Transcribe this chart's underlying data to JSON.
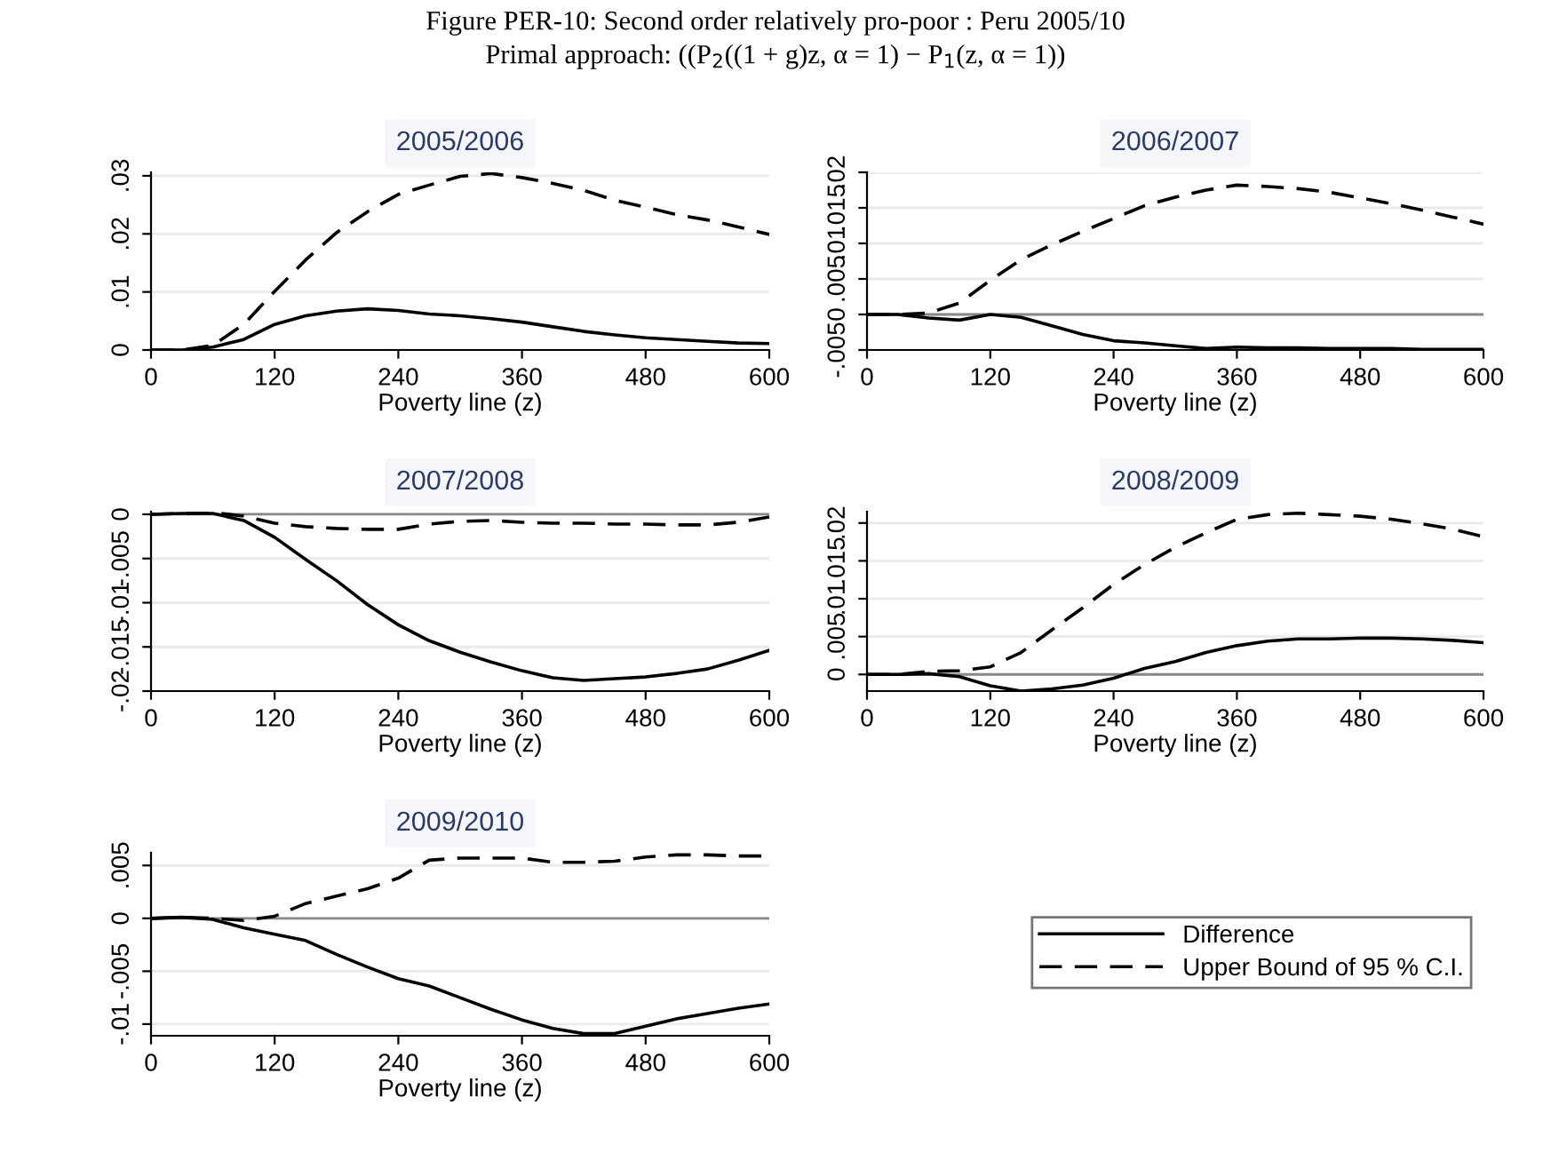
{
  "chart_data": [
    {
      "type": "line",
      "title": "2005/2006",
      "xlabel": "Poverty line (z)",
      "annotations": [
        "Figure PER-10: Second order relatively pro-poor : Peru 2005/10",
        "Primal approach: ((P$_{2}$((1 + g)z, α = 1) − P$_{1}$(z, α = 1))"
      ],
      "x": [
        0,
        30,
        60,
        90,
        120,
        150,
        180,
        210,
        240,
        270,
        300,
        330,
        360,
        390,
        420,
        450,
        480,
        510,
        540,
        570,
        600
      ],
      "xlim": [
        0,
        600
      ],
      "xticks": [
        0,
        120,
        240,
        360,
        480,
        600
      ],
      "ylim": [
        0,
        0.0306
      ],
      "yticks": [
        {
          "value": 0,
          "label": "0"
        },
        {
          "value": 0.01,
          "label": ".01"
        },
        {
          "value": 0.02,
          "label": ".02"
        },
        {
          "value": 0.03,
          "label": ".03"
        }
      ],
      "grid": "y",
      "legend": "bottom right",
      "series": [
        {
          "name": "Difference",
          "color": "#000000",
          "line_style": "solid",
          "values": [
            0,
            0,
            0.0005,
            0.0018,
            0.0044,
            0.0059,
            0.0067,
            0.0071,
            0.0068,
            0.0062,
            0.0059,
            0.0054,
            0.0048,
            0.004,
            0.0032,
            0.0026,
            0.0021,
            0.0018,
            0.0015,
            0.0012,
            0.0011
          ]
        },
        {
          "name": "Upper Bound of 95 % C.I.",
          "color": "#000000",
          "line_style": "dashed",
          "values": [
            0,
            0,
            0.0008,
            0.0044,
            0.0101,
            0.0155,
            0.0202,
            0.0238,
            0.0268,
            0.0284,
            0.0299,
            0.0304,
            0.0297,
            0.0287,
            0.0275,
            0.0258,
            0.0246,
            0.0233,
            0.0224,
            0.0212,
            0.0199
          ]
        }
      ]
    },
    {
      "type": "line",
      "title": "2006/2007",
      "xlabel": "Poverty line (z)",
      "x": [
        0,
        30,
        60,
        90,
        120,
        150,
        180,
        210,
        240,
        270,
        300,
        330,
        360,
        390,
        420,
        450,
        480,
        510,
        540,
        570,
        600
      ],
      "xlim": [
        0,
        600
      ],
      "xticks": [
        0,
        120,
        240,
        360,
        480,
        600
      ],
      "ylim": [
        -0.005,
        0.02
      ],
      "yticks": [
        {
          "value": -0.005,
          "label": "-.005"
        },
        {
          "value": 0,
          "label": "0"
        },
        {
          "value": 0.005,
          "label": ".005"
        },
        {
          "value": 0.01,
          "label": ".01"
        },
        {
          "value": 0.015,
          "label": ".015"
        },
        {
          "value": 0.02,
          "label": ".02"
        }
      ],
      "grid": "y",
      "ref_lines": [
        {
          "axis": "y",
          "value": 0,
          "color": "#888888"
        }
      ],
      "series": [
        {
          "color": "#000000",
          "line_style": "solid",
          "values": [
            0,
            0,
            -0.0005,
            -0.0008,
            0,
            -0.0004,
            -0.0016,
            -0.0028,
            -0.0037,
            -0.004,
            -0.0044,
            -0.0048,
            -0.0046,
            -0.0047,
            -0.0047,
            -0.0048,
            -0.0048,
            -0.0048,
            -0.0049,
            -0.0049,
            -0.0049
          ]
        },
        {
          "color": "#000000",
          "line_style": "dashed",
          "values": [
            0,
            0,
            0.0002,
            0.0016,
            0.0048,
            0.0077,
            0.0098,
            0.0117,
            0.0135,
            0.0153,
            0.0165,
            0.0175,
            0.0182,
            0.018,
            0.0177,
            0.0172,
            0.0164,
            0.0156,
            0.0147,
            0.0137,
            0.0127
          ]
        }
      ]
    },
    {
      "type": "line",
      "title": "2007/2008",
      "xlabel": "Poverty line (z)",
      "x": [
        0,
        30,
        60,
        90,
        120,
        150,
        180,
        210,
        240,
        270,
        300,
        330,
        360,
        390,
        420,
        450,
        480,
        510,
        540,
        570,
        600
      ],
      "xlim": [
        0,
        600
      ],
      "xticks": [
        0,
        120,
        240,
        360,
        480,
        600
      ],
      "ylim": [
        -0.02,
        0.0003
      ],
      "yticks": [
        {
          "value": -0.02,
          "label": "-.02"
        },
        {
          "value": -0.015,
          "label": "-.015"
        },
        {
          "value": -0.01,
          "label": "-.01"
        },
        {
          "value": -0.005,
          "label": "-.005"
        },
        {
          "value": 0,
          "label": "0"
        }
      ],
      "grid": "y",
      "ref_lines": [
        {
          "axis": "y",
          "value": 0,
          "color": "#888888"
        }
      ],
      "series": [
        {
          "color": "#000000",
          "line_style": "solid",
          "values": [
            0,
            0.0001,
            0.0001,
            -0.0007,
            -0.0026,
            -0.0051,
            -0.0075,
            -0.0102,
            -0.0125,
            -0.0143,
            -0.0156,
            -0.0167,
            -0.0177,
            -0.0185,
            -0.0188,
            -0.0186,
            -0.0184,
            -0.018,
            -0.0175,
            -0.0165,
            -0.0154
          ]
        },
        {
          "color": "#000000",
          "line_style": "dashed",
          "values": [
            0,
            0.0001,
            0.0002,
            -0.0002,
            -0.001,
            -0.0014,
            -0.0016,
            -0.0017,
            -0.0017,
            -0.0011,
            -0.0008,
            -0.0007,
            -0.0009,
            -0.001,
            -0.001,
            -0.0011,
            -0.0011,
            -0.0012,
            -0.0012,
            -0.0009,
            -0.0003
          ]
        }
      ]
    },
    {
      "type": "line",
      "title": "2008/2009",
      "xlabel": "Poverty line (z)",
      "x": [
        0,
        30,
        60,
        90,
        120,
        150,
        180,
        210,
        240,
        270,
        300,
        330,
        360,
        390,
        420,
        450,
        480,
        510,
        540,
        570,
        600
      ],
      "xlim": [
        0,
        600
      ],
      "xticks": [
        0,
        120,
        240,
        360,
        480,
        600
      ],
      "ylim": [
        -0.0022,
        0.0215
      ],
      "yticks": [
        {
          "value": 0,
          "label": "0"
        },
        {
          "value": 0.005,
          "label": ".005"
        },
        {
          "value": 0.01,
          "label": ".01"
        },
        {
          "value": 0.015,
          "label": ".015"
        },
        {
          "value": 0.02,
          "label": ".02"
        }
      ],
      "grid": "y",
      "ref_lines": [
        {
          "axis": "y",
          "value": 0,
          "color": "#888888"
        }
      ],
      "series": [
        {
          "color": "#000000",
          "line_style": "solid",
          "values": [
            0,
            0,
            0.0001,
            -0.0003,
            -0.0015,
            -0.0022,
            -0.0019,
            -0.0014,
            -0.0005,
            0.0008,
            0.0017,
            0.0029,
            0.0038,
            0.0044,
            0.0047,
            0.0047,
            0.0048,
            0.0048,
            0.0047,
            0.0045,
            0.0042
          ]
        },
        {
          "color": "#000000",
          "line_style": "dashed",
          "values": [
            0,
            0,
            0.0004,
            0.0005,
            0.001,
            0.0029,
            0.0059,
            0.0088,
            0.0119,
            0.0145,
            0.0168,
            0.0187,
            0.0205,
            0.0211,
            0.0213,
            0.0211,
            0.0209,
            0.0205,
            0.0199,
            0.0192,
            0.0182
          ]
        }
      ]
    },
    {
      "type": "line",
      "title": "2009/2010",
      "xlabel": "Poverty line (z)",
      "x": [
        0,
        30,
        60,
        90,
        120,
        150,
        180,
        210,
        240,
        270,
        300,
        330,
        360,
        390,
        420,
        450,
        480,
        510,
        540,
        570,
        600
      ],
      "xlim": [
        0,
        600
      ],
      "xticks": [
        0,
        120,
        240,
        360,
        480,
        600
      ],
      "ylim": [
        -0.0111,
        0.0062
      ],
      "yticks": [
        {
          "value": -0.01,
          "label": "-.01"
        },
        {
          "value": -0.005,
          "label": "-.005"
        },
        {
          "value": 0,
          "label": "0"
        },
        {
          "value": 0.005,
          "label": ".005"
        }
      ],
      "grid": "y",
      "ref_lines": [
        {
          "axis": "y",
          "value": 0,
          "color": "#888888"
        }
      ],
      "series": [
        {
          "color": "#000000",
          "line_style": "solid",
          "values": [
            0,
            0.0001,
            -0.0001,
            -0.0009,
            -0.0015,
            -0.0021,
            -0.0034,
            -0.0046,
            -0.0057,
            -0.0064,
            -0.0075,
            -0.0086,
            -0.0096,
            -0.0104,
            -0.0109,
            -0.0109,
            -0.0102,
            -0.0095,
            -0.009,
            -0.0085,
            -0.0081
          ]
        },
        {
          "color": "#000000",
          "line_style": "dashed",
          "values": [
            0,
            0.0001,
            0,
            -0.0002,
            0.0002,
            0.0014,
            0.0021,
            0.0028,
            0.0038,
            0.0055,
            0.0057,
            0.0057,
            0.0057,
            0.0053,
            0.0053,
            0.0054,
            0.0058,
            0.006,
            0.006,
            0.0059,
            0.0059
          ]
        }
      ]
    }
  ]
}
